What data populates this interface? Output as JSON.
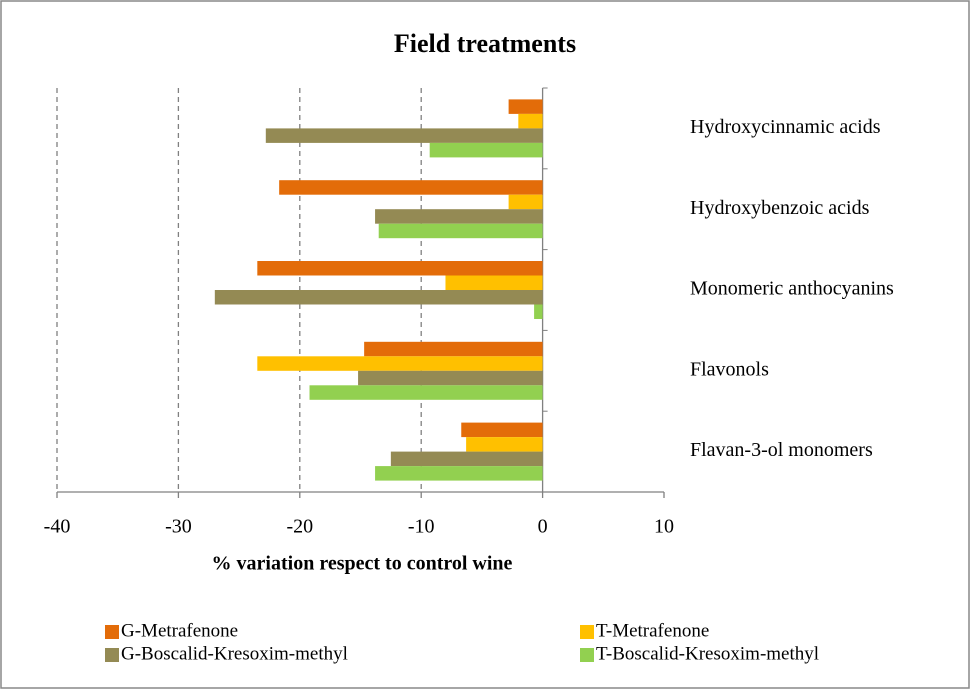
{
  "chart_data": {
    "type": "hbar",
    "title": "Field treatments",
    "x_label": "% variation respect to control wine",
    "categories": [
      "Hydroxycinnamic acids",
      "Hydroxybenzoic acids",
      "Monomeric anthocyanins",
      "Flavonols",
      "Flavan-3-ol monomers"
    ],
    "series": [
      {
        "name": "G-Metrafenone",
        "color": "#e36c09",
        "values": [
          -2.8,
          -21.7,
          -23.5,
          -14.7,
          -6.7
        ]
      },
      {
        "name": "T-Metrafenone",
        "color": "#ffc000",
        "values": [
          -2.0,
          -2.8,
          -8.0,
          -23.5,
          -6.3
        ]
      },
      {
        "name": "G-Boscalid-Kresoxim-methyl",
        "color": "#948a54",
        "values": [
          -22.8,
          -13.8,
          -27.0,
          -15.2,
          -12.5
        ]
      },
      {
        "name": "T-Boscalid-Kresoxim-methyl",
        "color": "#92d050",
        "values": [
          -9.3,
          -13.5,
          -0.7,
          -19.2,
          -13.8
        ]
      }
    ],
    "xlim": [
      -40,
      10
    ],
    "xticks": [
      -40,
      -30,
      -20,
      -10,
      0,
      10
    ],
    "grid": true
  }
}
